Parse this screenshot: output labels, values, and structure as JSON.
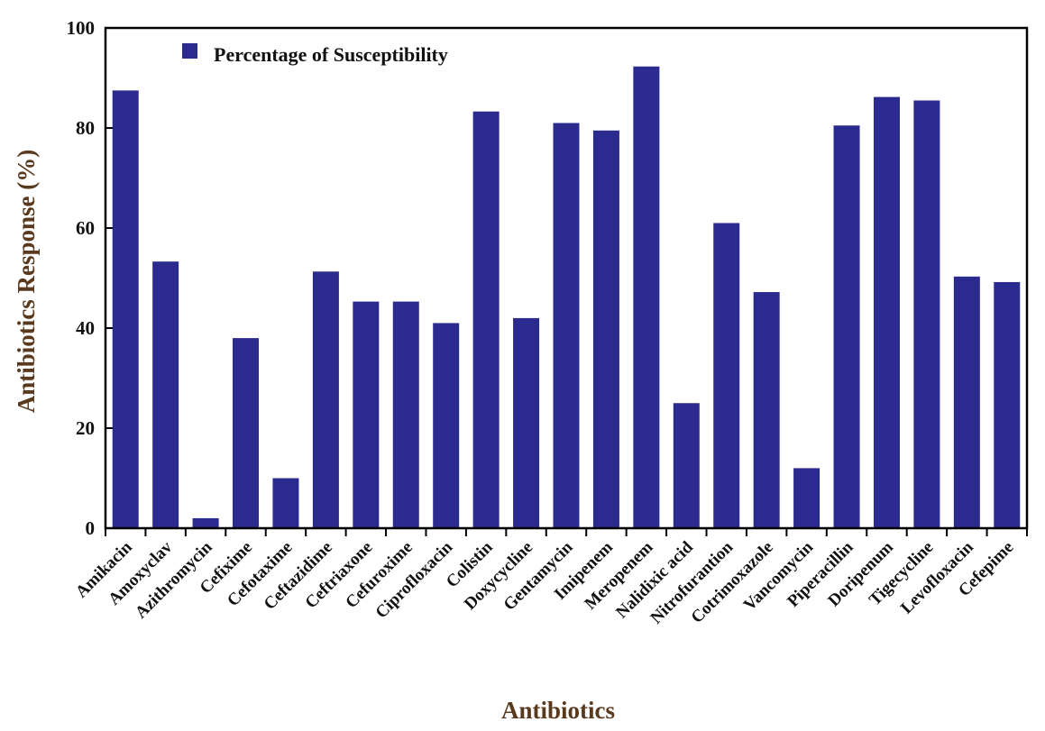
{
  "chart_data": {
    "type": "bar",
    "categories": [
      "Amikacin",
      "Amoxyclav",
      "Azithromycin",
      "Cefixime",
      "Cefotaxime",
      "Ceftazidime",
      "Ceftriaxone",
      "Cefuroxime",
      "Ciprofloxacin",
      "Colistin",
      "Doxycycline",
      "Gentamycin",
      "Imipenem",
      "Meropenem",
      "Nalidixic acid",
      "Nitrofurantion",
      "Cotrimoxazole",
      "Vancomycin",
      "Piperacillin",
      "Doripenum",
      "Tigecycline",
      "Levofloxacin",
      "Cefepime"
    ],
    "series": [
      {
        "name": "Percentage of Susceptibility",
        "values": [
          87.5,
          53.3,
          2,
          38,
          10,
          51.3,
          45.3,
          45.3,
          41,
          83.3,
          42,
          81,
          79.5,
          92.3,
          25,
          61,
          47.2,
          12,
          80.5,
          86.2,
          85.5,
          50.3,
          49.2
        ]
      }
    ],
    "xlabel": "Antibiotics",
    "ylabel": "Antibiotics Response (%)",
    "ylim": [
      0,
      100
    ],
    "yticks": [
      0,
      20,
      40,
      60,
      80,
      100
    ],
    "grid": false,
    "legend": "top-left",
    "colors": {
      "bar": "#2b2b8f",
      "axis": "#000000",
      "label": "#5a3a1e"
    }
  }
}
